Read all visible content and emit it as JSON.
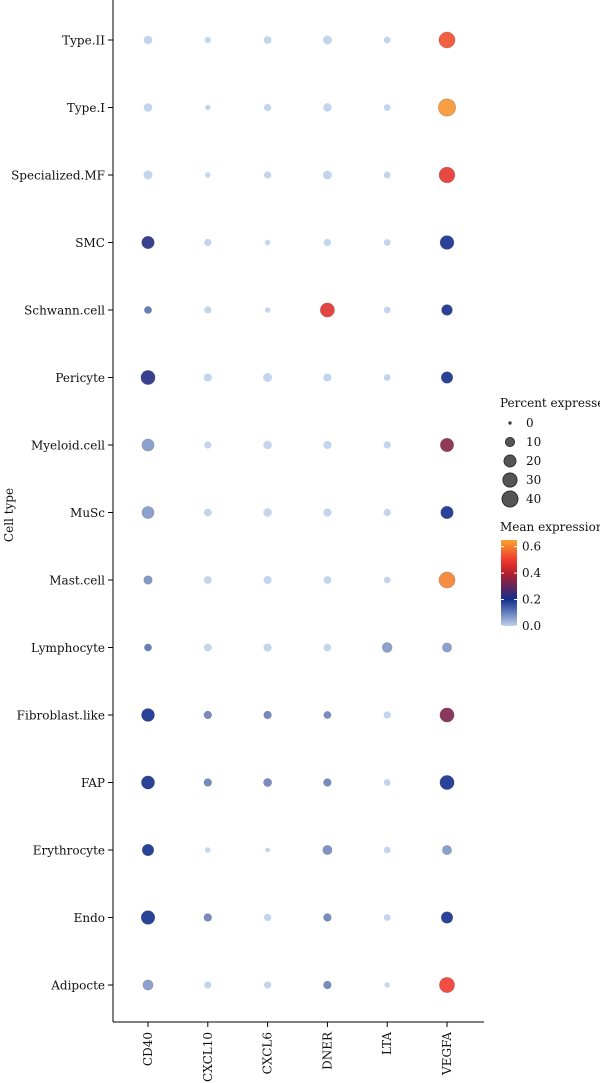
{
  "chart_data": {
    "type": "dot",
    "ylabel": "Cell type",
    "genes": [
      "CD40",
      "CXCL10",
      "CXCL6",
      "DNER",
      "LTA",
      "VEGFA"
    ],
    "cell_types": [
      "Type.II",
      "Type.I",
      "Specialized.MF",
      "SMC",
      "Schwann.cell",
      "Pericyte",
      "Myeloid.cell",
      "MuSc",
      "Mast.cell",
      "Lymphocyte",
      "Fibroblast.like",
      "FAP",
      "Erythrocyte",
      "Endo",
      "Adipocte"
    ],
    "percent_expressed": [
      [
        8,
        3,
        6,
        9,
        4,
        40
      ],
      [
        8,
        2,
        5,
        8,
        4,
        48
      ],
      [
        9,
        2,
        5,
        9,
        4,
        38
      ],
      [
        22,
        5,
        2,
        5,
        4,
        28
      ],
      [
        5,
        5,
        2,
        30,
        4,
        15
      ],
      [
        30,
        7,
        9,
        7,
        4,
        18
      ],
      [
        20,
        5,
        8,
        7,
        5,
        26
      ],
      [
        20,
        6,
        8,
        7,
        5,
        22
      ],
      [
        8,
        6,
        7,
        6,
        4,
        40
      ],
      [
        5,
        6,
        7,
        6,
        12,
        10
      ],
      [
        24,
        6,
        6,
        5,
        5,
        30
      ],
      [
        25,
        6,
        7,
        6,
        4,
        30
      ],
      [
        18,
        2,
        1,
        10,
        4,
        10
      ],
      [
        27,
        6,
        5,
        6,
        4,
        18
      ],
      [
        13,
        5,
        5,
        6,
        2,
        35
      ]
    ],
    "mean_expression": [
      [
        0.0,
        0.0,
        0.0,
        0.0,
        0.0,
        0.53
      ],
      [
        0.0,
        0.0,
        0.0,
        0.0,
        0.0,
        0.63
      ],
      [
        0.0,
        0.0,
        0.0,
        0.0,
        0.0,
        0.48
      ],
      [
        0.22,
        0.0,
        0.0,
        0.0,
        0.0,
        0.2
      ],
      [
        0.12,
        0.0,
        0.0,
        0.47,
        0.0,
        0.2
      ],
      [
        0.22,
        0.0,
        0.0,
        0.0,
        0.0,
        0.2
      ],
      [
        0.07,
        0.0,
        0.0,
        0.0,
        0.0,
        0.34
      ],
      [
        0.07,
        0.0,
        0.0,
        0.0,
        0.0,
        0.2
      ],
      [
        0.08,
        0.0,
        0.0,
        0.0,
        0.0,
        0.6
      ],
      [
        0.12,
        0.0,
        0.0,
        0.0,
        0.07,
        0.07
      ],
      [
        0.2,
        0.1,
        0.1,
        0.1,
        0.0,
        0.33
      ],
      [
        0.2,
        0.1,
        0.1,
        0.1,
        0.0,
        0.2
      ],
      [
        0.2,
        0.0,
        0.0,
        0.09,
        0.0,
        0.07
      ],
      [
        0.2,
        0.1,
        0.0,
        0.1,
        0.0,
        0.2
      ],
      [
        0.07,
        0.0,
        0.0,
        0.1,
        0.0,
        0.5
      ]
    ],
    "size_legend": {
      "title": "Percent expressed",
      "values": [
        0,
        10,
        20,
        30,
        40
      ]
    },
    "color_legend": {
      "title": "Mean expression",
      "ticks": [
        0.0,
        0.2,
        0.4,
        0.6
      ],
      "tick_labels": [
        "0.0",
        "0.2",
        "0.4",
        "0.6"
      ],
      "range": [
        0,
        0.65
      ]
    },
    "colors": {
      "scale": [
        "#bcd0ea",
        "#132e8c",
        "#b51e2a",
        "#f03a2e",
        "#f7a32e"
      ],
      "dot_stroke": "#444444",
      "legend_dot": "#555555",
      "axis": "#000000"
    },
    "legend_placement": "right",
    "grid": false
  }
}
